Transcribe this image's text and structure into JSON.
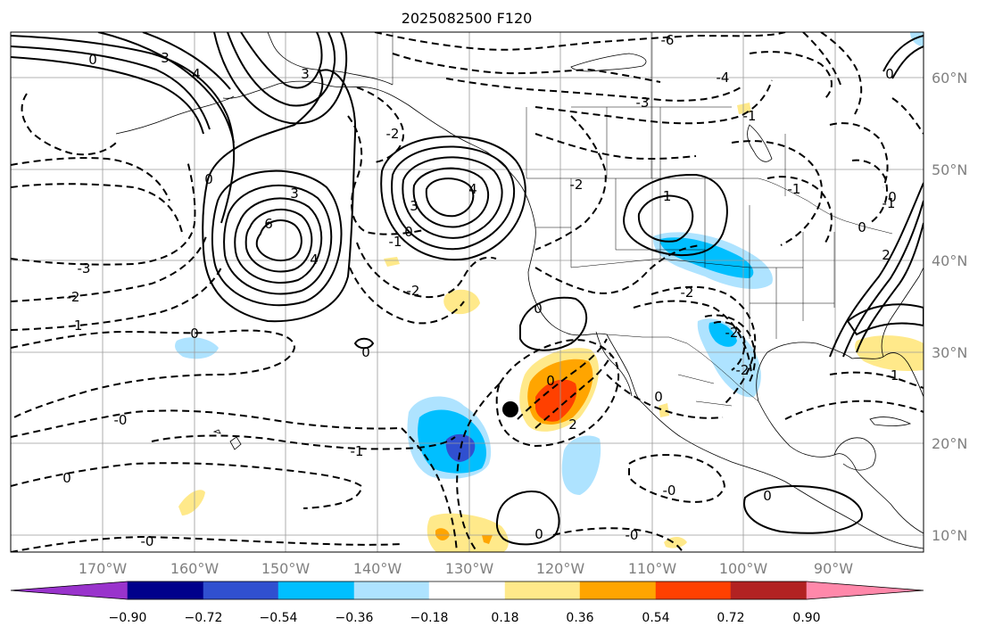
{
  "title": "2025082500 F120",
  "longitude_labels": [
    "170°W",
    "160°W",
    "150°W",
    "140°W",
    "130°W",
    "120°W",
    "110°W",
    "100°W",
    "90°W"
  ],
  "latitude_labels": [
    "60°N",
    "50°N",
    "40°N",
    "30°N",
    "20°N",
    "10°N"
  ],
  "colorbar": {
    "tick_labels": [
      "−0.90",
      "−0.72",
      "−0.54",
      "−0.36",
      "−0.18",
      "0.18",
      "0.36",
      "0.54",
      "0.72",
      "0.90"
    ],
    "colors": [
      "#9933cc",
      "#00008b",
      "#3050d0",
      "#00bfff",
      "#aee3ff",
      "#ffffff",
      "#ffe98a",
      "#ffa500",
      "#ff4000",
      "#b22222",
      "#ff88aa"
    ]
  },
  "contour_labels": [
    {
      "text": "0",
      "name": "label-0-nw"
    },
    {
      "text": "3",
      "name": "label-3-nw"
    },
    {
      "text": "4",
      "name": "label-4-nw"
    },
    {
      "text": "3",
      "name": "label-3-gulf-alaska"
    },
    {
      "text": "-6",
      "name": "label-neg6-north"
    },
    {
      "text": "-3",
      "name": "label-neg3-canada"
    },
    {
      "text": "-4",
      "name": "label-neg4-canada"
    },
    {
      "text": "0",
      "name": "label-0-northeast"
    },
    {
      "text": "-2",
      "name": "label-neg2-west"
    },
    {
      "text": "0",
      "name": "label-0-northpacific"
    },
    {
      "text": "3",
      "name": "label-3-low-west"
    },
    {
      "text": "6",
      "name": "label-6-low-west"
    },
    {
      "text": "4",
      "name": "label-4-low-west"
    },
    {
      "text": "3",
      "name": "label-3-low-east"
    },
    {
      "text": "4",
      "name": "label-4-low-east"
    },
    {
      "text": "-2",
      "name": "label-neg2-gulf"
    },
    {
      "text": "0",
      "name": "label-0-gulf"
    },
    {
      "text": "-2",
      "name": "label-neg2-rockies"
    },
    {
      "text": "-1",
      "name": "label-neg1-midwest"
    },
    {
      "text": "-1",
      "name": "label-neg1-northcentral"
    },
    {
      "text": "-1",
      "name": "label-neg1-greatlakes"
    },
    {
      "text": "-3",
      "name": "label-neg3-pacific"
    },
    {
      "text": "-2",
      "name": "label-neg2-pacific"
    },
    {
      "text": "-1",
      "name": "label-neg1-pacific"
    },
    {
      "text": "-1",
      "name": "label-neg1-offshore"
    },
    {
      "text": "-2",
      "name": "label-neg2-offshore"
    },
    {
      "text": "0",
      "name": "label-0-hawaii-north"
    },
    {
      "text": "0",
      "name": "label-0-west-central"
    },
    {
      "text": "0",
      "name": "label-0-baja"
    },
    {
      "text": "-2",
      "name": "label-neg2-plains"
    },
    {
      "text": "0",
      "name": "label-0-hurricane"
    },
    {
      "text": "2",
      "name": "label-2-hurricane"
    },
    {
      "text": "-2",
      "name": "label-neg2-texas"
    },
    {
      "text": "-1",
      "name": "label-neg1-texas"
    },
    {
      "text": "-0",
      "name": "label-neg0-central"
    },
    {
      "text": "-1",
      "name": "label-neg1-central"
    },
    {
      "text": "0",
      "name": "label-0-southwest"
    },
    {
      "text": "-0",
      "name": "label-neg0-south"
    },
    {
      "text": "0",
      "name": "label-0-south"
    },
    {
      "text": "0",
      "name": "label-0-mexico"
    },
    {
      "text": "-0",
      "name": "label-neg0-mexico-south"
    },
    {
      "text": "-0",
      "name": "label-neg0-southpacific"
    },
    {
      "text": "0",
      "name": "label-0-mexico-mid"
    },
    {
      "text": "0",
      "name": "label-0-centralamerica"
    },
    {
      "text": "-1",
      "name": "label-neg1-atlantic"
    },
    {
      "text": "2",
      "name": "label-2-east"
    },
    {
      "text": "0",
      "name": "label-0-east"
    }
  ]
}
